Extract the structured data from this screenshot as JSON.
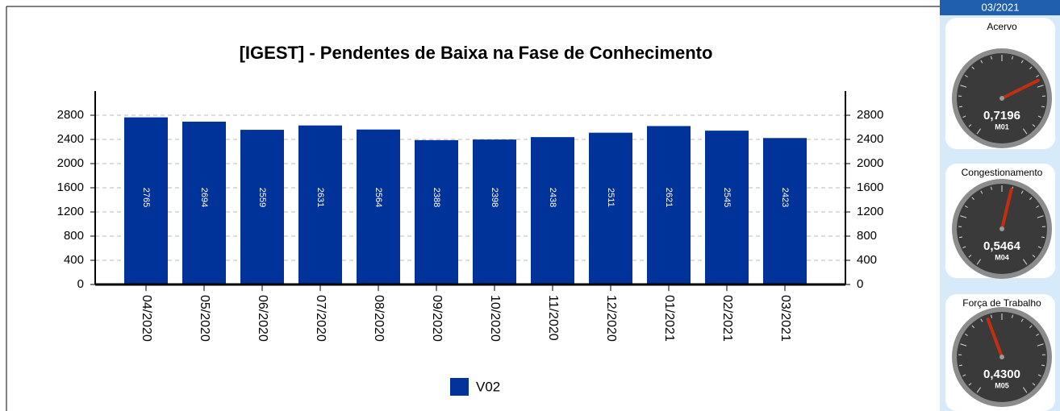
{
  "chart_data": {
    "type": "bar",
    "title": "[IGEST]  - Pendentes de Baixa na Fase de Conhecimento",
    "categories": [
      "04/2020",
      "05/2020",
      "06/2020",
      "07/2020",
      "08/2020",
      "09/2020",
      "10/2020",
      "11/2020",
      "12/2020",
      "01/2021",
      "02/2021",
      "03/2021"
    ],
    "series": [
      {
        "name": "V02",
        "color": "#003399",
        "values": [
          2765,
          2694,
          2559,
          2631,
          2564,
          2388,
          2398,
          2438,
          2511,
          2621,
          2545,
          2423
        ]
      }
    ],
    "ylim": [
      0,
      3200
    ],
    "yticks": [
      0,
      400,
      800,
      1200,
      1600,
      2000,
      2400,
      2800
    ],
    "y2lim": [
      0,
      3200
    ],
    "y2ticks": [
      0,
      400,
      800,
      1200,
      1600,
      2000,
      2400,
      2800
    ],
    "grid": true,
    "legend": "bottom"
  },
  "panel": {
    "period": "03/2021",
    "gauges": [
      {
        "title": "Acervo",
        "value": 0.7196,
        "value_label": "0,7196",
        "code": "M01"
      },
      {
        "title": "Congestionamento",
        "value": 0.5464,
        "value_label": "0,5464",
        "code": "M04"
      },
      {
        "title": "Força de Trabalho",
        "value": 0.43,
        "value_label": "0,4300",
        "code": "M05"
      }
    ]
  }
}
